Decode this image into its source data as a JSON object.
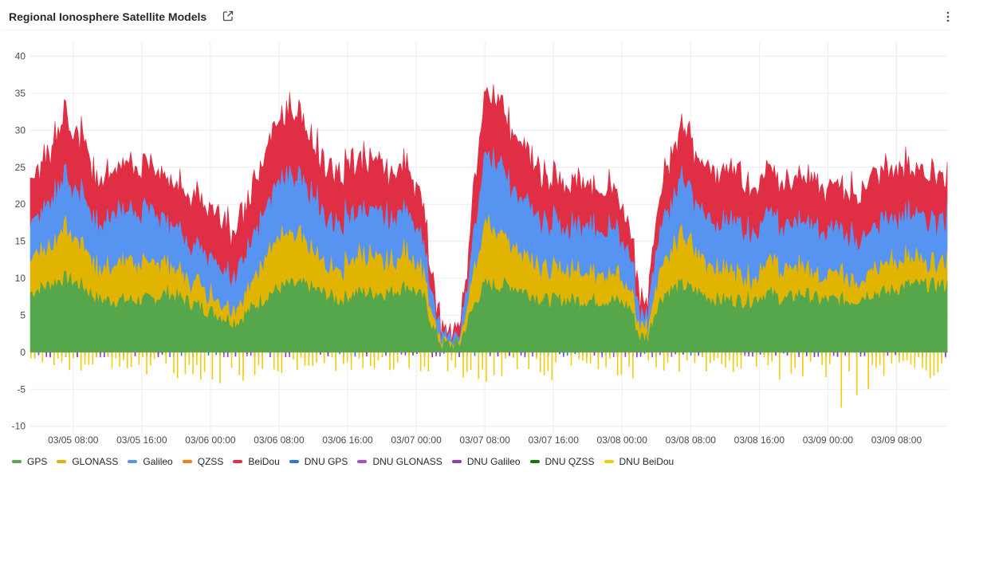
{
  "panel": {
    "title": "Regional Ionosphere Satellite Models",
    "link_icon": "external-link-icon",
    "menu_icon": "kebab-menu-icon"
  },
  "chart_data": {
    "type": "area",
    "stacked": true,
    "title": "Regional Ionosphere Satellite Models",
    "xlabel": "",
    "ylabel": "",
    "ylim": [
      -11,
      42
    ],
    "yticks": [
      40,
      35,
      30,
      25,
      20,
      15,
      10,
      5,
      0,
      -5,
      -10
    ],
    "xticks": [
      "03/05 08:00",
      "03/05 16:00",
      "03/06 00:00",
      "03/06 08:00",
      "03/06 16:00",
      "03/07 00:00",
      "03/07 08:00",
      "03/07 16:00",
      "03/08 00:00",
      "03/08 08:00",
      "03/08 16:00",
      "03/09 00:00",
      "03/09 08:00"
    ],
    "x_range": [
      "03/05 03:00",
      "03/09 14:00"
    ],
    "grid": true,
    "legend_position": "bottom",
    "series": [
      {
        "name": "GPS",
        "color": "#56a64b",
        "values": [
          [
            0,
            8
          ],
          [
            2,
            9
          ],
          [
            4,
            10
          ],
          [
            6,
            9
          ],
          [
            8,
            7
          ],
          [
            10,
            7
          ],
          [
            12,
            7
          ],
          [
            14,
            7
          ],
          [
            16,
            8
          ],
          [
            18,
            7
          ],
          [
            20,
            6
          ],
          [
            22,
            5
          ],
          [
            24,
            4
          ],
          [
            26,
            6
          ],
          [
            28,
            8
          ],
          [
            30,
            9
          ],
          [
            32,
            9
          ],
          [
            34,
            8
          ],
          [
            36,
            7
          ],
          [
            38,
            8
          ],
          [
            40,
            8
          ],
          [
            42,
            8
          ],
          [
            44,
            9
          ],
          [
            46,
            7
          ],
          [
            47,
            3
          ],
          [
            48,
            1
          ],
          [
            50,
            1
          ],
          [
            51,
            4
          ],
          [
            52,
            7
          ],
          [
            53,
            9
          ],
          [
            54,
            9
          ],
          [
            56,
            9
          ],
          [
            58,
            8
          ],
          [
            60,
            7
          ],
          [
            62,
            7
          ],
          [
            64,
            7
          ],
          [
            66,
            7
          ],
          [
            68,
            7
          ],
          [
            70,
            6
          ],
          [
            71,
            2
          ],
          [
            72,
            2
          ],
          [
            73,
            6
          ],
          [
            74,
            8
          ],
          [
            76,
            9
          ],
          [
            78,
            8
          ],
          [
            80,
            7
          ],
          [
            82,
            7
          ],
          [
            84,
            7
          ],
          [
            86,
            8
          ],
          [
            88,
            7
          ],
          [
            90,
            8
          ],
          [
            92,
            7
          ],
          [
            94,
            7
          ],
          [
            96,
            7
          ],
          [
            98,
            8
          ],
          [
            100,
            8
          ],
          [
            102,
            9
          ],
          [
            104,
            9
          ],
          [
            106,
            9
          ],
          [
            107,
            9
          ]
        ]
      },
      {
        "name": "GLONASS",
        "color": "#e0b400",
        "values": [
          [
            0,
            5
          ],
          [
            2,
            5
          ],
          [
            4,
            7
          ],
          [
            6,
            6
          ],
          [
            8,
            4
          ],
          [
            10,
            5
          ],
          [
            12,
            5
          ],
          [
            14,
            5
          ],
          [
            16,
            4
          ],
          [
            18,
            3
          ],
          [
            20,
            3
          ],
          [
            22,
            2
          ],
          [
            24,
            2
          ],
          [
            26,
            4
          ],
          [
            28,
            6
          ],
          [
            30,
            7
          ],
          [
            32,
            6
          ],
          [
            34,
            4
          ],
          [
            36,
            4
          ],
          [
            38,
            5
          ],
          [
            40,
            5
          ],
          [
            42,
            4
          ],
          [
            44,
            5
          ],
          [
            46,
            3
          ],
          [
            47,
            1
          ],
          [
            48,
            0
          ],
          [
            50,
            0
          ],
          [
            51,
            2
          ],
          [
            52,
            5
          ],
          [
            53,
            8
          ],
          [
            54,
            8
          ],
          [
            56,
            6
          ],
          [
            58,
            5
          ],
          [
            60,
            4
          ],
          [
            62,
            4
          ],
          [
            64,
            4
          ],
          [
            66,
            4
          ],
          [
            68,
            4
          ],
          [
            70,
            3
          ],
          [
            71,
            1
          ],
          [
            72,
            1
          ],
          [
            73,
            3
          ],
          [
            74,
            5
          ],
          [
            76,
            7
          ],
          [
            78,
            5
          ],
          [
            80,
            4
          ],
          [
            82,
            4
          ],
          [
            84,
            3
          ],
          [
            86,
            4
          ],
          [
            88,
            4
          ],
          [
            90,
            4
          ],
          [
            92,
            3
          ],
          [
            94,
            4
          ],
          [
            96,
            3
          ],
          [
            98,
            3
          ],
          [
            100,
            4
          ],
          [
            102,
            4
          ],
          [
            104,
            3
          ],
          [
            106,
            3
          ],
          [
            107,
            3
          ]
        ]
      },
      {
        "name": "Galileo",
        "color": "#5794f2",
        "values": [
          [
            0,
            5
          ],
          [
            2,
            6
          ],
          [
            4,
            7
          ],
          [
            6,
            7
          ],
          [
            8,
            6
          ],
          [
            10,
            7
          ],
          [
            12,
            7
          ],
          [
            14,
            7
          ],
          [
            16,
            6
          ],
          [
            18,
            5
          ],
          [
            20,
            5
          ],
          [
            22,
            5
          ],
          [
            24,
            5
          ],
          [
            26,
            6
          ],
          [
            28,
            7
          ],
          [
            30,
            8
          ],
          [
            32,
            8
          ],
          [
            34,
            7
          ],
          [
            36,
            6
          ],
          [
            38,
            6
          ],
          [
            40,
            6
          ],
          [
            42,
            6
          ],
          [
            44,
            6
          ],
          [
            46,
            4
          ],
          [
            47,
            2
          ],
          [
            48,
            1
          ],
          [
            50,
            1
          ],
          [
            51,
            3
          ],
          [
            52,
            6
          ],
          [
            53,
            9
          ],
          [
            54,
            10
          ],
          [
            56,
            8
          ],
          [
            58,
            7
          ],
          [
            60,
            6
          ],
          [
            62,
            6
          ],
          [
            64,
            6
          ],
          [
            66,
            6
          ],
          [
            68,
            6
          ],
          [
            70,
            5
          ],
          [
            71,
            2
          ],
          [
            72,
            2
          ],
          [
            73,
            5
          ],
          [
            74,
            6
          ],
          [
            76,
            7
          ],
          [
            78,
            7
          ],
          [
            80,
            6
          ],
          [
            82,
            7
          ],
          [
            84,
            6
          ],
          [
            86,
            7
          ],
          [
            88,
            6
          ],
          [
            90,
            6
          ],
          [
            92,
            6
          ],
          [
            94,
            6
          ],
          [
            96,
            6
          ],
          [
            98,
            6
          ],
          [
            100,
            6
          ],
          [
            102,
            6
          ],
          [
            104,
            6
          ],
          [
            106,
            6
          ],
          [
            107,
            6
          ]
        ]
      },
      {
        "name": "QZSS",
        "color": "#ff780a",
        "values": [
          [
            0,
            0
          ],
          [
            107,
            0
          ]
        ]
      },
      {
        "name": "BeiDou",
        "color": "#e02f44",
        "values": [
          [
            0,
            6
          ],
          [
            2,
            7
          ],
          [
            4,
            8
          ],
          [
            6,
            8
          ],
          [
            8,
            6
          ],
          [
            10,
            6
          ],
          [
            12,
            6
          ],
          [
            14,
            6
          ],
          [
            16,
            6
          ],
          [
            18,
            6
          ],
          [
            20,
            7
          ],
          [
            22,
            7
          ],
          [
            24,
            6
          ],
          [
            26,
            7
          ],
          [
            28,
            8
          ],
          [
            30,
            9
          ],
          [
            32,
            8
          ],
          [
            34,
            7
          ],
          [
            36,
            7
          ],
          [
            38,
            7
          ],
          [
            40,
            7
          ],
          [
            42,
            6
          ],
          [
            44,
            6
          ],
          [
            46,
            5
          ],
          [
            47,
            2
          ],
          [
            48,
            1
          ],
          [
            50,
            1
          ],
          [
            51,
            3
          ],
          [
            52,
            7
          ],
          [
            53,
            8
          ],
          [
            54,
            9
          ],
          [
            56,
            8
          ],
          [
            58,
            7
          ],
          [
            60,
            6
          ],
          [
            62,
            6
          ],
          [
            64,
            6
          ],
          [
            66,
            6
          ],
          [
            68,
            5
          ],
          [
            70,
            4
          ],
          [
            71,
            2
          ],
          [
            72,
            2
          ],
          [
            73,
            4
          ],
          [
            74,
            6
          ],
          [
            76,
            7
          ],
          [
            78,
            7
          ],
          [
            80,
            7
          ],
          [
            82,
            7
          ],
          [
            84,
            6
          ],
          [
            86,
            6
          ],
          [
            88,
            6
          ],
          [
            90,
            6
          ],
          [
            92,
            6
          ],
          [
            94,
            6
          ],
          [
            96,
            6
          ],
          [
            98,
            7
          ],
          [
            100,
            7
          ],
          [
            102,
            7
          ],
          [
            104,
            6
          ],
          [
            106,
            6
          ],
          [
            107,
            6
          ]
        ]
      },
      {
        "name": "DNU GPS",
        "color": "#3274d9",
        "values": [
          [
            0,
            -0.5
          ],
          [
            107,
            -0.5
          ]
        ]
      },
      {
        "name": "DNU GLONASS",
        "color": "#a352cc",
        "values": [
          [
            0,
            -0.5
          ],
          [
            107,
            -0.5
          ]
        ]
      },
      {
        "name": "DNU Galileo",
        "color": "#8f3bb8",
        "values": [
          [
            0,
            -0.5
          ],
          [
            107,
            -0.5
          ]
        ]
      },
      {
        "name": "DNU QZSS",
        "color": "#19730e",
        "values": [
          [
            0,
            0
          ],
          [
            107,
            0
          ]
        ]
      },
      {
        "name": "DNU BeiDou",
        "color": "#f2cc0c",
        "values": [
          [
            0,
            -1
          ],
          [
            5,
            -2
          ],
          [
            10,
            -1.5
          ],
          [
            18,
            -3
          ],
          [
            22,
            -4
          ],
          [
            30,
            -2
          ],
          [
            36,
            -2
          ],
          [
            44,
            -2
          ],
          [
            46,
            -4
          ],
          [
            48,
            -3
          ],
          [
            50,
            -2
          ],
          [
            52,
            -6
          ],
          [
            54,
            -3
          ],
          [
            58,
            -2
          ],
          [
            62,
            -3
          ],
          [
            66,
            -2
          ],
          [
            70,
            -4
          ],
          [
            72,
            -2
          ],
          [
            76,
            -2
          ],
          [
            80,
            -2
          ],
          [
            84,
            -2
          ],
          [
            88,
            -3
          ],
          [
            92,
            -3
          ],
          [
            95,
            -6
          ],
          [
            98,
            -4
          ],
          [
            102,
            -2
          ],
          [
            106,
            -3
          ],
          [
            107,
            -2
          ]
        ]
      }
    ]
  }
}
